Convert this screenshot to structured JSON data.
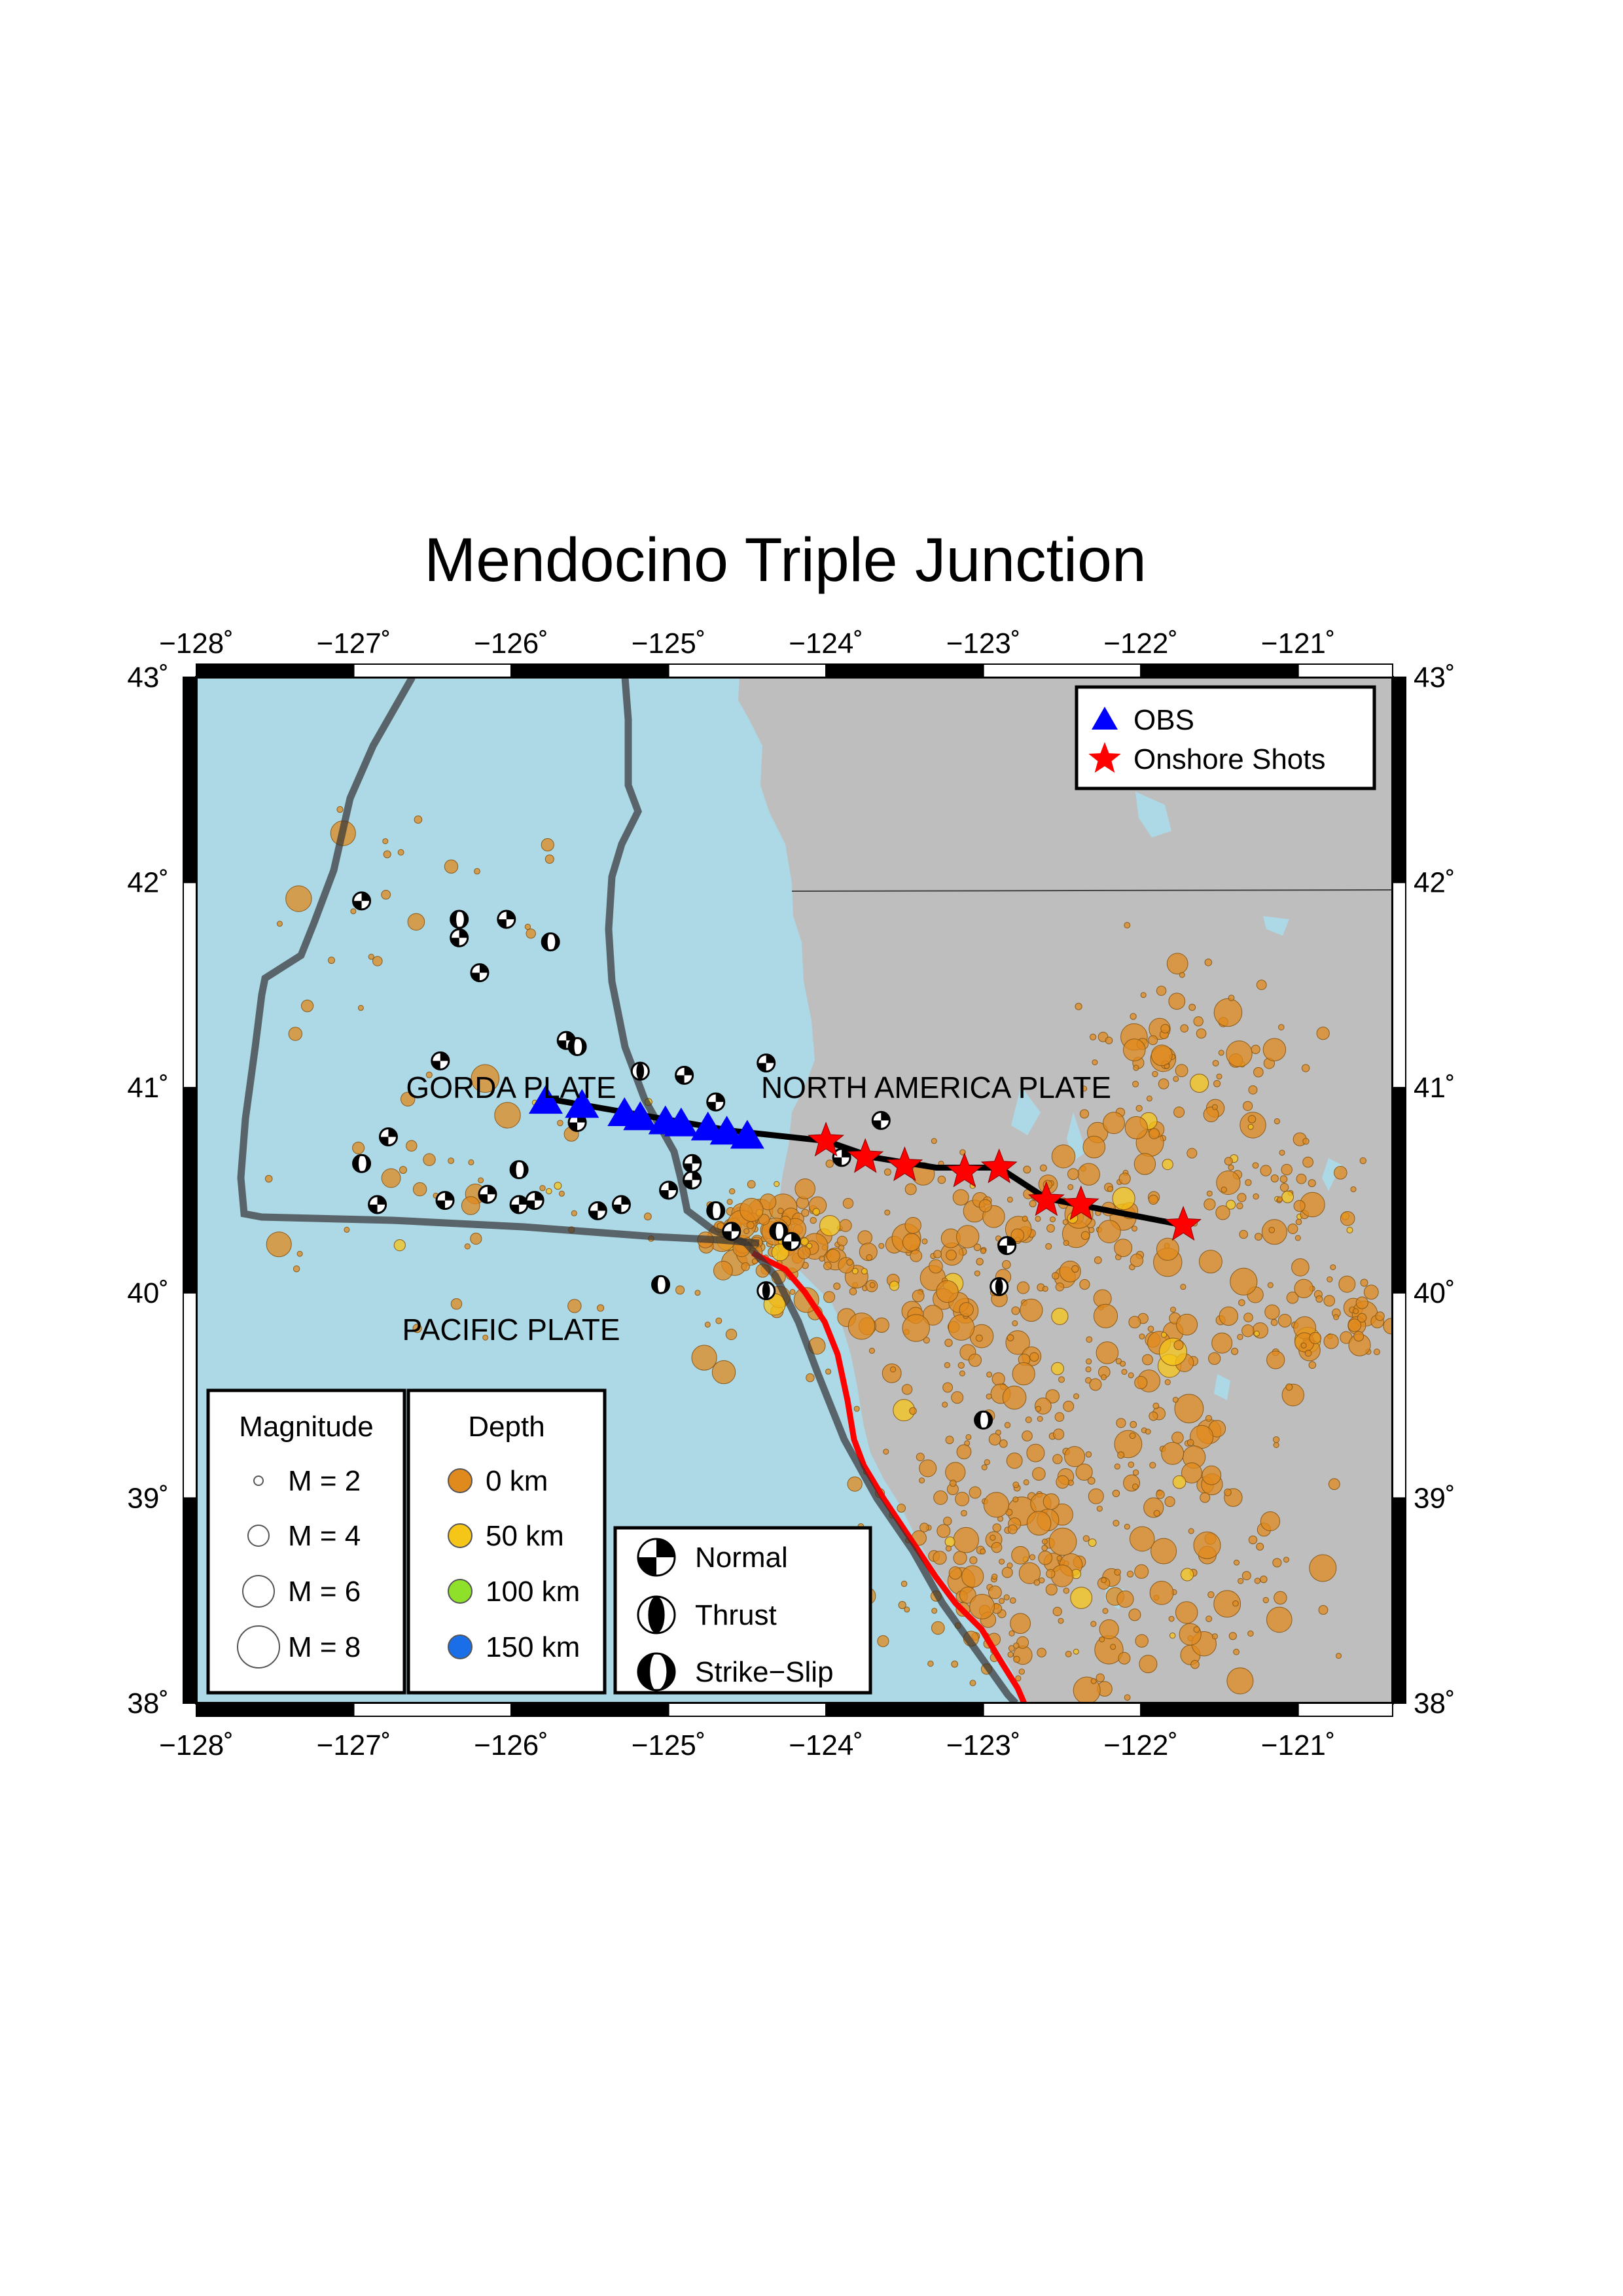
{
  "title": "Mendocino Triple Junction",
  "map": {
    "lon_range": [
      -128,
      -120.4
    ],
    "lat_range": [
      38,
      43
    ],
    "lon_ticks": [
      -128,
      -127,
      -126,
      -125,
      -124,
      -123,
      -122,
      -121
    ],
    "lat_ticks": [
      38,
      39,
      40,
      41,
      42,
      43
    ],
    "lon_tick_labels": [
      "−128˚",
      "−127˚",
      "−126˚",
      "−125˚",
      "−124˚",
      "−123˚",
      "−122˚",
      "−121˚"
    ],
    "lat_tick_labels": [
      "38˚",
      "39˚",
      "40˚",
      "41˚",
      "42˚",
      "43˚"
    ],
    "ocean_color": "#add8e6",
    "land_color": "#bebebe"
  },
  "plate_labels": [
    {
      "text": "GORDA PLATE",
      "lon": -126.0,
      "lat": 40.95
    },
    {
      "text": "NORTH AMERICA PLATE",
      "lon": -123.3,
      "lat": 40.95
    },
    {
      "text": "PACIFIC PLATE",
      "lon": -126.0,
      "lat": 39.77
    }
  ],
  "legend_top": {
    "items": [
      {
        "label": "OBS",
        "symbol": "triangle",
        "color": "#0000ff"
      },
      {
        "label": "Onshore Shots",
        "symbol": "star",
        "color": "#ff0000"
      }
    ]
  },
  "legend_magnitude": {
    "title": "Magnitude",
    "items": [
      "M = 2",
      "M = 4",
      "M = 6",
      "M = 8"
    ]
  },
  "legend_depth": {
    "title": "Depth",
    "items": [
      {
        "label": "0 km",
        "color": "#e08a1e"
      },
      {
        "label": "50 km",
        "color": "#f5c518"
      },
      {
        "label": "100 km",
        "color": "#8fe02a"
      },
      {
        "label": "150 km",
        "color": "#1a6fe8"
      }
    ]
  },
  "legend_mechanism": {
    "items": [
      {
        "label": "Normal",
        "type": "normal"
      },
      {
        "label": "Thrust",
        "type": "thrust"
      },
      {
        "label": "Strike−Slip",
        "type": "strike-slip"
      }
    ]
  },
  "colors": {
    "obs": "#0000ff",
    "shots": "#ff0000",
    "profile": "#000000",
    "plate_boundary": "#333333",
    "san_andreas": "#ff0000"
  },
  "obs_stations": [
    {
      "lon": -125.78,
      "lat": 40.93
    },
    {
      "lon": -125.55,
      "lat": 40.91
    },
    {
      "lon": -125.28,
      "lat": 40.87
    },
    {
      "lon": -125.18,
      "lat": 40.85
    },
    {
      "lon": -125.02,
      "lat": 40.83
    },
    {
      "lon": -124.92,
      "lat": 40.82
    },
    {
      "lon": -124.75,
      "lat": 40.8
    },
    {
      "lon": -124.63,
      "lat": 40.78
    },
    {
      "lon": -124.5,
      "lat": 40.76
    }
  ],
  "onshore_shots": [
    {
      "lon": -124.0,
      "lat": 40.74
    },
    {
      "lon": -123.75,
      "lat": 40.66
    },
    {
      "lon": -123.5,
      "lat": 40.62
    },
    {
      "lon": -123.12,
      "lat": 40.59
    },
    {
      "lon": -122.9,
      "lat": 40.61
    },
    {
      "lon": -122.6,
      "lat": 40.45
    },
    {
      "lon": -122.38,
      "lat": 40.43
    },
    {
      "lon": -121.73,
      "lat": 40.33
    }
  ],
  "profile_line": [
    [
      -125.8,
      40.95
    ],
    [
      -125.2,
      40.87
    ],
    [
      -124.6,
      40.79
    ],
    [
      -124.0,
      40.74
    ],
    [
      -123.7,
      40.66
    ],
    [
      -123.3,
      40.61
    ],
    [
      -122.9,
      40.61
    ],
    [
      -122.6,
      40.46
    ],
    [
      -122.2,
      40.4
    ],
    [
      -121.73,
      40.33
    ]
  ],
  "mechanisms": [
    {
      "lon": -126.95,
      "lat": 41.91,
      "type": "normal"
    },
    {
      "lon": -126.33,
      "lat": 41.82,
      "type": "strike-slip"
    },
    {
      "lon": -126.33,
      "lat": 41.73,
      "type": "normal"
    },
    {
      "lon": -126.03,
      "lat": 41.82,
      "type": "normal"
    },
    {
      "lon": -125.75,
      "lat": 41.71,
      "type": "strike-slip"
    },
    {
      "lon": -126.2,
      "lat": 41.56,
      "type": "normal"
    },
    {
      "lon": -125.65,
      "lat": 41.23,
      "type": "normal"
    },
    {
      "lon": -125.58,
      "lat": 41.2,
      "type": "strike-slip"
    },
    {
      "lon": -126.45,
      "lat": 41.13,
      "type": "normal"
    },
    {
      "lon": -125.18,
      "lat": 41.08,
      "type": "thrust"
    },
    {
      "lon": -124.9,
      "lat": 41.06,
      "type": "normal"
    },
    {
      "lon": -124.38,
      "lat": 41.12,
      "type": "normal"
    },
    {
      "lon": -125.58,
      "lat": 40.83,
      "type": "normal"
    },
    {
      "lon": -126.78,
      "lat": 40.76,
      "type": "normal"
    },
    {
      "lon": -126.95,
      "lat": 40.63,
      "type": "strike-slip"
    },
    {
      "lon": -125.95,
      "lat": 40.6,
      "type": "strike-slip"
    },
    {
      "lon": -126.15,
      "lat": 40.48,
      "type": "normal"
    },
    {
      "lon": -126.42,
      "lat": 40.45,
      "type": "normal"
    },
    {
      "lon": -126.85,
      "lat": 40.43,
      "type": "normal"
    },
    {
      "lon": -125.95,
      "lat": 40.43,
      "type": "normal"
    },
    {
      "lon": -125.85,
      "lat": 40.45,
      "type": "normal"
    },
    {
      "lon": -125.45,
      "lat": 40.4,
      "type": "normal"
    },
    {
      "lon": -125.3,
      "lat": 40.43,
      "type": "normal"
    },
    {
      "lon": -125.0,
      "lat": 40.5,
      "type": "normal"
    },
    {
      "lon": -124.85,
      "lat": 40.55,
      "type": "normal"
    },
    {
      "lon": -124.7,
      "lat": 40.4,
      "type": "strike-slip"
    },
    {
      "lon": -124.6,
      "lat": 40.3,
      "type": "normal"
    },
    {
      "lon": -124.3,
      "lat": 40.3,
      "type": "strike-slip"
    },
    {
      "lon": -124.22,
      "lat": 40.25,
      "type": "normal"
    },
    {
      "lon": -124.38,
      "lat": 40.01,
      "type": "thrust"
    },
    {
      "lon": -125.05,
      "lat": 40.04,
      "type": "strike-slip"
    },
    {
      "lon": -123.9,
      "lat": 40.66,
      "type": "normal"
    },
    {
      "lon": -123.65,
      "lat": 40.84,
      "type": "normal"
    },
    {
      "lon": -124.85,
      "lat": 40.63,
      "type": "normal"
    },
    {
      "lon": -124.7,
      "lat": 40.93,
      "type": "normal"
    },
    {
      "lon": -122.9,
      "lat": 40.03,
      "type": "thrust"
    },
    {
      "lon": -122.85,
      "lat": 40.23,
      "type": "normal"
    },
    {
      "lon": -123.0,
      "lat": 39.38,
      "type": "strike-slip"
    }
  ]
}
